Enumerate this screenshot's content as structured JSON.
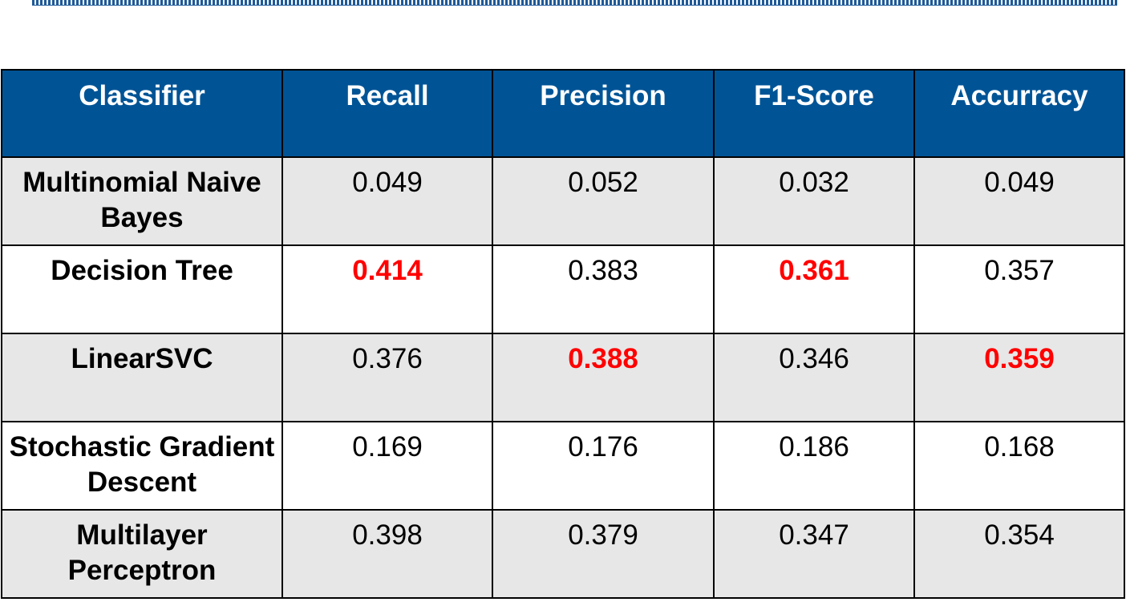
{
  "accent_color": "#005496",
  "highlight_color": "#ff0000",
  "table": {
    "headers": [
      "Classifier",
      "Recall",
      "Precision",
      "F1-Score",
      "Accurracy"
    ],
    "rows": [
      {
        "name": "Multinomial Naive Bayes",
        "recall": "0.049",
        "precision": "0.052",
        "f1": "0.032",
        "accuracy": "0.049"
      },
      {
        "name": "Decision Tree",
        "recall": "0.414",
        "precision": "0.383",
        "f1": "0.361",
        "accuracy": "0.357"
      },
      {
        "name": "LinearSVC",
        "recall": "0.376",
        "precision": "0.388",
        "f1": "0.346",
        "accuracy": "0.359"
      },
      {
        "name": "Stochastic Gradient Descent",
        "recall": "0.169",
        "precision": "0.176",
        "f1": "0.186",
        "accuracy": "0.168"
      },
      {
        "name": "Multilayer Perceptron",
        "recall": "0.398",
        "precision": "0.379",
        "f1": "0.347",
        "accuracy": "0.354"
      }
    ],
    "highlighted_best": {
      "recall": "Decision Tree",
      "precision": "LinearSVC",
      "f1": "Decision Tree",
      "accuracy": "LinearSVC"
    }
  }
}
